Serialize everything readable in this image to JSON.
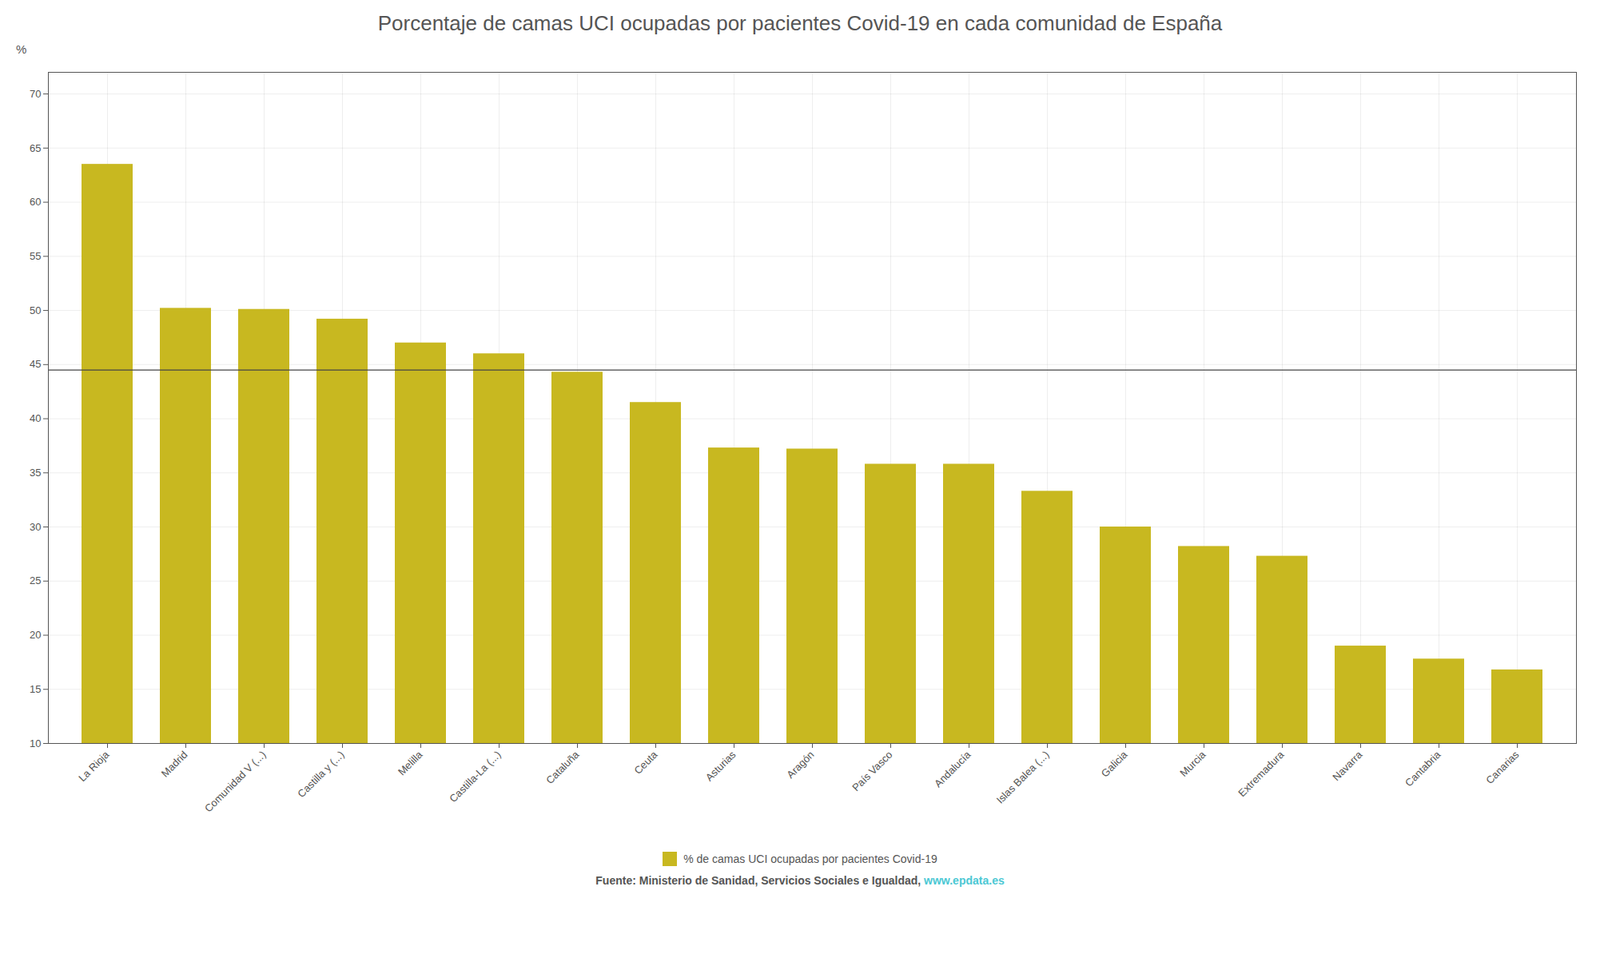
{
  "chart_data": {
    "type": "bar",
    "title": "Porcentaje de camas UCI ocupadas por pacientes Covid-19 en cada comunidad de España",
    "categories": [
      "La Rioja",
      "Madrid",
      "Comunidad V (...)",
      "Castilla y (...)",
      "Melilla",
      "Castilla-La (...)",
      "Cataluña",
      "Ceuta",
      "Asturias",
      "Aragón",
      "País Vasco",
      "Andalucía",
      "Islas Balea (...)",
      "Galicia",
      "Murcia",
      "Extremadura",
      "Navarra",
      "Cantabria",
      "Canarias"
    ],
    "series": [
      {
        "name": "% de camas UCI ocupadas por pacientes Covid-19",
        "color": "#c8b820",
        "values": [
          63.5,
          50.2,
          50.1,
          49.2,
          47.0,
          46.0,
          44.3,
          41.5,
          37.3,
          37.2,
          35.8,
          35.8,
          33.3,
          30.0,
          28.2,
          27.3,
          19.0,
          17.8,
          16.8
        ]
      }
    ],
    "ylabel": "%",
    "ylim": [
      10,
      72
    ],
    "yticks": [
      10,
      15,
      20,
      25,
      30,
      35,
      40,
      45,
      50,
      55,
      60,
      65,
      70
    ],
    "grid": true,
    "legend": "bottom",
    "hline": {
      "value": 44.5,
      "color": "#444444"
    },
    "source": [
      {
        "text": "Fuente: Ministerio de Sanidad, Servicios Sociales e Igualdad,",
        "color": "#555555"
      },
      {
        "text": " www.epdata.es",
        "color": "#4bc8d4"
      }
    ]
  }
}
